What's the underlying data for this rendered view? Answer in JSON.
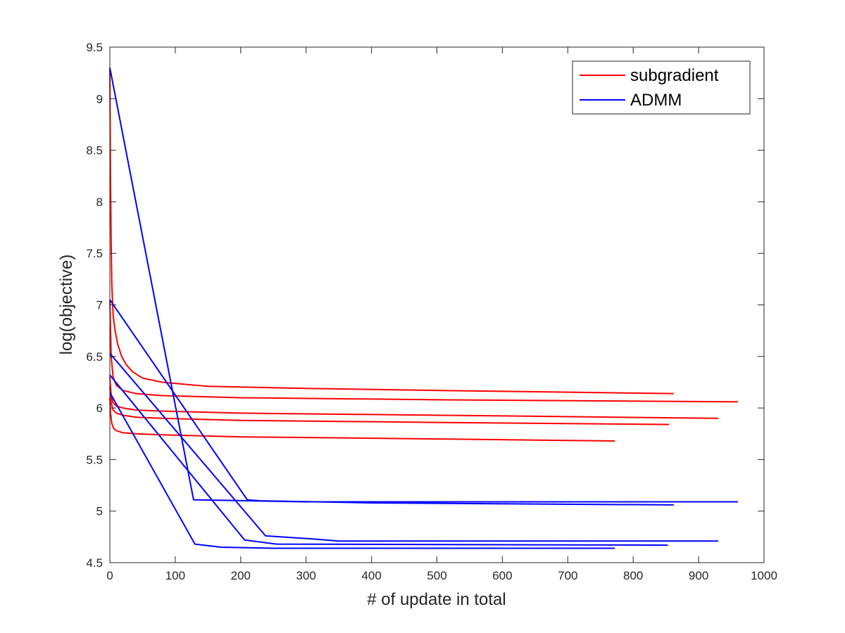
{
  "chart_data": {
    "type": "line",
    "title": "",
    "xlabel": "# of update in total",
    "ylabel": "log(objective)",
    "xlim": [
      0,
      1000
    ],
    "ylim": [
      4.5,
      9.5
    ],
    "xticks": [
      0,
      100,
      200,
      300,
      400,
      500,
      600,
      700,
      800,
      900,
      1000
    ],
    "yticks": [
      4.5,
      5,
      5.5,
      6,
      6.5,
      7,
      7.5,
      8,
      8.5,
      9,
      9.5
    ],
    "xtick_labels": [
      "0",
      "100",
      "200",
      "300",
      "400",
      "500",
      "600",
      "700",
      "800",
      "900",
      "1000"
    ],
    "ytick_labels": [
      "4.5",
      "5",
      "5.5",
      "6",
      "6.5",
      "7",
      "7.5",
      "8",
      "8.5",
      "9",
      "9.5"
    ],
    "grid": false,
    "legend": {
      "position": "top-right",
      "entries": [
        {
          "label": "subgradient",
          "color": "#ff0000"
        },
        {
          "label": "ADMM",
          "color": "#0000ff"
        }
      ]
    },
    "series": [
      {
        "group": "subgradient",
        "color": "#ff0000",
        "x": [
          0,
          1,
          2,
          3,
          5,
          8,
          12,
          18,
          25,
          35,
          50,
          80,
          150,
          300,
          500,
          862
        ],
        "y": [
          9.3,
          8.2,
          7.6,
          7.2,
          6.9,
          6.75,
          6.62,
          6.5,
          6.42,
          6.35,
          6.29,
          6.25,
          6.21,
          6.19,
          6.17,
          6.14
        ]
      },
      {
        "group": "subgradient",
        "color": "#ff0000",
        "x": [
          0,
          2,
          5,
          10,
          20,
          40,
          80,
          200,
          500,
          960
        ],
        "y": [
          7.05,
          6.5,
          6.3,
          6.22,
          6.17,
          6.14,
          6.12,
          6.1,
          6.08,
          6.06
        ]
      },
      {
        "group": "subgradient",
        "color": "#ff0000",
        "x": [
          0,
          2,
          5,
          10,
          20,
          40,
          80,
          200,
          500,
          930
        ],
        "y": [
          6.3,
          6.12,
          6.05,
          6.02,
          6.0,
          5.98,
          5.97,
          5.95,
          5.93,
          5.9
        ]
      },
      {
        "group": "subgradient",
        "color": "#ff0000",
        "x": [
          0,
          2,
          5,
          10,
          20,
          40,
          80,
          200,
          500,
          855
        ],
        "y": [
          6.2,
          6.05,
          5.98,
          5.95,
          5.93,
          5.91,
          5.9,
          5.88,
          5.86,
          5.84
        ]
      },
      {
        "group": "subgradient",
        "color": "#ff0000",
        "x": [
          0,
          1,
          3,
          6,
          10,
          20,
          40,
          80,
          200,
          500,
          772
        ],
        "y": [
          6.1,
          5.95,
          5.85,
          5.8,
          5.78,
          5.76,
          5.75,
          5.74,
          5.72,
          5.7,
          5.68
        ]
      },
      {
        "group": "ADMM",
        "color": "#0000ff",
        "x": [
          0,
          128,
          300,
          960
        ],
        "y": [
          9.3,
          5.11,
          5.09,
          5.09
        ]
      },
      {
        "group": "ADMM",
        "color": "#0000ff",
        "x": [
          0,
          210,
          230,
          400,
          862
        ],
        "y": [
          7.05,
          5.11,
          5.1,
          5.08,
          5.06
        ]
      },
      {
        "group": "ADMM",
        "color": "#0000ff",
        "x": [
          0,
          238,
          310,
          350,
          930
        ],
        "y": [
          6.53,
          4.76,
          4.73,
          4.71,
          4.71
        ]
      },
      {
        "group": "ADMM",
        "color": "#0000ff",
        "x": [
          0,
          206,
          255,
          853
        ],
        "y": [
          6.32,
          4.72,
          4.68,
          4.67
        ]
      },
      {
        "group": "ADMM",
        "color": "#0000ff",
        "x": [
          0,
          130,
          170,
          250,
          772
        ],
        "y": [
          6.15,
          4.68,
          4.65,
          4.64,
          4.64
        ]
      }
    ]
  }
}
